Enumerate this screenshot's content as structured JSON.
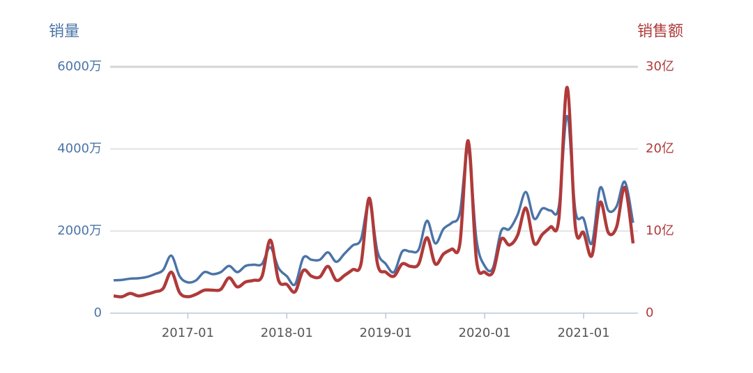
{
  "chart_data": {
    "type": "line",
    "x": [
      "2016-04",
      "2016-05",
      "2016-06",
      "2016-07",
      "2016-08",
      "2016-09",
      "2016-10",
      "2016-11",
      "2016-12",
      "2017-01",
      "2017-02",
      "2017-03",
      "2017-04",
      "2017-05",
      "2017-06",
      "2017-07",
      "2017-08",
      "2017-09",
      "2017-10",
      "2017-11",
      "2017-12",
      "2018-01",
      "2018-02",
      "2018-03",
      "2018-04",
      "2018-05",
      "2018-06",
      "2018-07",
      "2018-08",
      "2018-09",
      "2018-10",
      "2018-11",
      "2018-12",
      "2019-01",
      "2019-02",
      "2019-03",
      "2019-04",
      "2019-05",
      "2019-06",
      "2019-07",
      "2019-08",
      "2019-09",
      "2019-10",
      "2019-11",
      "2019-12",
      "2020-01",
      "2020-02",
      "2020-03",
      "2020-04",
      "2020-05",
      "2020-06",
      "2020-07",
      "2020-08",
      "2020-09",
      "2020-10",
      "2020-11",
      "2020-12",
      "2021-01",
      "2021-02",
      "2021-03",
      "2021-04",
      "2021-05",
      "2021-06",
      "2021-07"
    ],
    "xticks": [
      "2017-01",
      "2018-01",
      "2019-01",
      "2020-01",
      "2021-01"
    ],
    "series": [
      {
        "name": "销量",
        "color": "#4a74a8",
        "axis": "y",
        "values": [
          800,
          810,
          840,
          850,
          880,
          950,
          1050,
          1400,
          900,
          750,
          800,
          1000,
          950,
          1000,
          1150,
          1000,
          1150,
          1180,
          1200,
          1600,
          1100,
          900,
          700,
          1350,
          1300,
          1300,
          1480,
          1250,
          1450,
          1650,
          1800,
          2700,
          1500,
          1200,
          1000,
          1500,
          1500,
          1550,
          2250,
          1700,
          2050,
          2200,
          2450,
          4000,
          1800,
          1150,
          1100,
          2000,
          2050,
          2400,
          2950,
          2300,
          2550,
          2500,
          2600,
          4800,
          2500,
          2300,
          1700,
          3050,
          2500,
          2600,
          3200,
          2200
        ]
      },
      {
        "name": "销售额",
        "color": "#b03a3a",
        "axis": "y2",
        "values": [
          2.1,
          2.0,
          2.4,
          2.1,
          2.3,
          2.6,
          3.0,
          5.0,
          2.5,
          2.0,
          2.3,
          2.8,
          2.8,
          2.9,
          4.3,
          3.2,
          3.8,
          4.0,
          4.5,
          8.9,
          4.0,
          3.5,
          2.6,
          5.2,
          4.5,
          4.4,
          5.7,
          4.0,
          4.6,
          5.3,
          6.0,
          14.0,
          6.0,
          5.0,
          4.5,
          6.0,
          5.7,
          6.0,
          9.2,
          6.0,
          7.2,
          7.8,
          8.5,
          21.0,
          6.5,
          5.0,
          5.0,
          9.0,
          8.3,
          9.5,
          12.8,
          8.5,
          9.6,
          10.5,
          11.5,
          27.5,
          10.5,
          9.8,
          7.0,
          13.5,
          9.8,
          10.5,
          15.3,
          8.5
        ]
      }
    ],
    "ylim": [
      0,
      6000
    ],
    "yticks": [
      0,
      {
        "value": 2000,
        "label": "2000万"
      },
      {
        "value": 4000,
        "label": "4000万"
      },
      {
        "value": 6000,
        "label": "6000万"
      }
    ],
    "y2lim": [
      0,
      30
    ],
    "y2ticks": [
      0,
      {
        "value": 10,
        "label": "10亿"
      },
      {
        "value": 20,
        "label": "20亿"
      },
      {
        "value": 30,
        "label": "30亿"
      }
    ],
    "grid": true
  }
}
